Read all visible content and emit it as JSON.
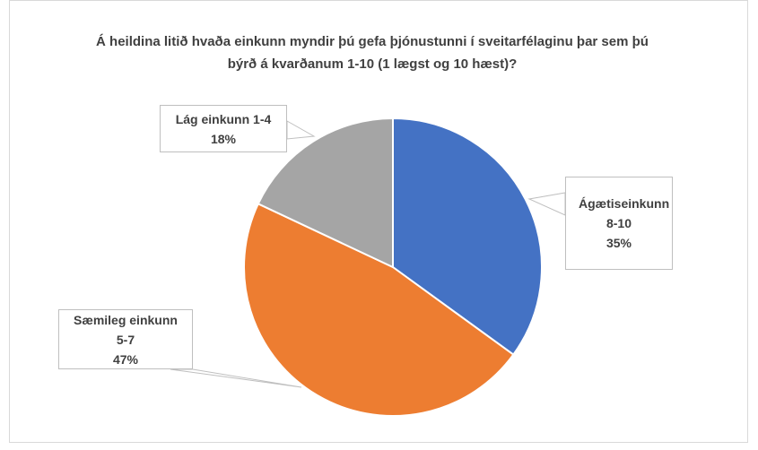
{
  "chart_data": {
    "type": "pie",
    "title": "Á heildina litið hvaða einkunn myndir þú gefa þjónustunni í sveitarfélaginu þar sem þú býrð á kvarðanum 1-10 (1 lægst og 10 hæst)?",
    "categories": [
      "Ágætiseinkunn 8-10",
      "Sæmileg einkunn 5-7",
      "Lág einkunn 1-4"
    ],
    "values": [
      35,
      47,
      18
    ],
    "value_labels": [
      "35%",
      "47%",
      "18%"
    ],
    "colors": [
      "#4472c4",
      "#ed7d31",
      "#a5a5a5"
    ]
  }
}
